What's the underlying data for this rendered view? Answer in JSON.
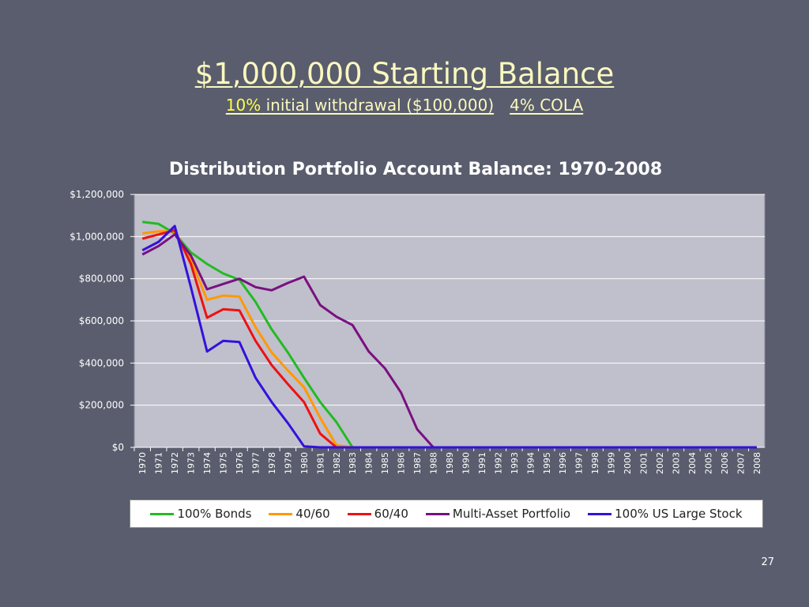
{
  "slide": {
    "title": "$1,000,000 Starting Balance",
    "subtitle_highlight": "10%",
    "subtitle_rest": "initial withdrawal ($100,000)",
    "subtitle_cola": "4% COLA",
    "page_number": "27"
  },
  "colors": {
    "background": "#595d6d",
    "plot_area": "#c0bfcc",
    "title": "#fbf8bf",
    "highlight": "#ffff44"
  },
  "chart_data": {
    "type": "line",
    "title": "Distribution Portfolio Account Balance: 1970-2008",
    "xlabel": "",
    "ylabel": "",
    "ylim": [
      0,
      1200000
    ],
    "yticks": [
      "$0",
      "$200,000",
      "$400,000",
      "$600,000",
      "$800,000",
      "$1,000,000",
      "$1,200,000"
    ],
    "grid": true,
    "legend_position": "bottom",
    "categories": [
      "1970",
      "1971",
      "1972",
      "1973",
      "1974",
      "1975",
      "1976",
      "1977",
      "1978",
      "1979",
      "1980",
      "1981",
      "1982",
      "1983",
      "1984",
      "1985",
      "1986",
      "1987",
      "1988",
      "1989",
      "1990",
      "1991",
      "1992",
      "1993",
      "1994",
      "1995",
      "1996",
      "1997",
      "1998",
      "1999",
      "2000",
      "2001",
      "2002",
      "2003",
      "2004",
      "2005",
      "2006",
      "2007",
      "2008"
    ],
    "series": [
      {
        "name": "100% Bonds",
        "color": "#22bb22",
        "values": [
          1070000,
          1060000,
          1015000,
          925000,
          870000,
          825000,
          795000,
          690000,
          560000,
          450000,
          330000,
          215000,
          120000,
          0,
          0,
          0,
          0,
          0,
          0,
          0,
          0,
          0,
          0,
          0,
          0,
          0,
          0,
          0,
          0,
          0,
          0,
          0,
          0,
          0,
          0,
          0,
          0,
          0,
          0
        ]
      },
      {
        "name": "40/60",
        "color": "#ff9900",
        "values": [
          1015000,
          1025000,
          1025000,
          890000,
          700000,
          720000,
          715000,
          570000,
          450000,
          365000,
          285000,
          140000,
          10000,
          0,
          0,
          0,
          0,
          0,
          0,
          0,
          0,
          0,
          0,
          0,
          0,
          0,
          0,
          0,
          0,
          0,
          0,
          0,
          0,
          0,
          0,
          0,
          0,
          0,
          0
        ]
      },
      {
        "name": "60/40",
        "color": "#ee1111",
        "values": [
          990000,
          1010000,
          1030000,
          870000,
          615000,
          655000,
          650000,
          505000,
          390000,
          300000,
          215000,
          65000,
          0,
          0,
          0,
          0,
          0,
          0,
          0,
          0,
          0,
          0,
          0,
          0,
          0,
          0,
          0,
          0,
          0,
          0,
          0,
          0,
          0,
          0,
          0,
          0,
          0,
          0,
          0
        ]
      },
      {
        "name": "Multi-Asset Portfolio",
        "color": "#7a1080",
        "values": [
          915000,
          955000,
          1010000,
          910000,
          750000,
          775000,
          800000,
          760000,
          745000,
          780000,
          810000,
          675000,
          620000,
          580000,
          455000,
          375000,
          260000,
          85000,
          0,
          0,
          0,
          0,
          0,
          0,
          0,
          0,
          0,
          0,
          0,
          0,
          0,
          0,
          0,
          0,
          0,
          0,
          0,
          0,
          0
        ]
      },
      {
        "name": "100% US Large Stock",
        "color": "#3311dd",
        "values": [
          935000,
          975000,
          1050000,
          760000,
          455000,
          505000,
          500000,
          330000,
          215000,
          115000,
          5000,
          0,
          0,
          0,
          0,
          0,
          0,
          0,
          0,
          0,
          0,
          0,
          0,
          0,
          0,
          0,
          0,
          0,
          0,
          0,
          0,
          0,
          0,
          0,
          0,
          0,
          0,
          0,
          0
        ]
      }
    ]
  }
}
